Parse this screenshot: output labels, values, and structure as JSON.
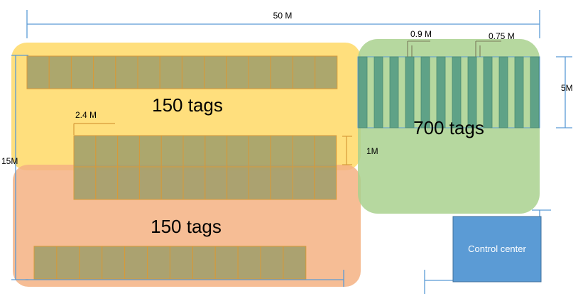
{
  "dimensions": {
    "total_width": "50 M",
    "total_height": "15M",
    "right_height": "5M",
    "aisle": "1M",
    "rack_width": "2.4 M",
    "slot_a": "0.9 M",
    "slot_b": "0.75 M"
  },
  "zones": [
    {
      "id": "yellow",
      "label": "150 tags",
      "color": "#ffd966"
    },
    {
      "id": "orange",
      "label": "150 tags",
      "color": "#f4b183"
    },
    {
      "id": "green",
      "label": "700 tags",
      "color": "#a9d18e"
    }
  ],
  "control_center": {
    "label": "Control center",
    "color": "#5b9bd5"
  },
  "colors": {
    "rack_fill": "#9e9e6a",
    "rack_stroke": "#d79a3a",
    "bar_fill": "#5fa287",
    "line": "#5b9bd5"
  }
}
